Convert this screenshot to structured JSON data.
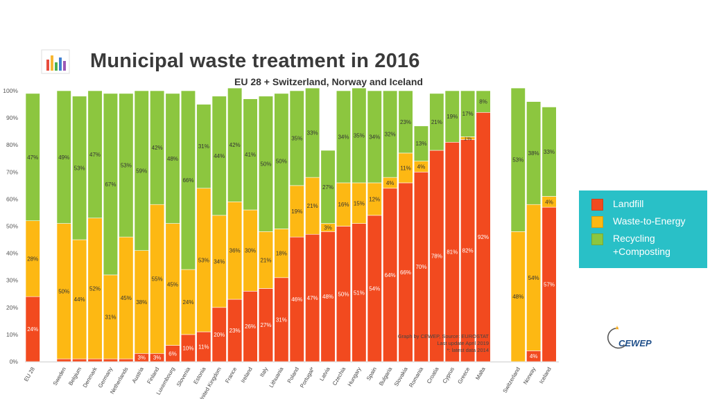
{
  "header": {
    "title": "Municipal waste treatment in 2016",
    "subtitle": "EU 28 + Switzerland, Norway and Iceland"
  },
  "legend": {
    "items": [
      {
        "label": "Landfill",
        "color": "#f24a1f"
      },
      {
        "label": "Waste-to-Energy",
        "color": "#fdb813"
      },
      {
        "label": "Recycling\n+Composting",
        "color": "#8cc63f"
      }
    ]
  },
  "note": {
    "line1": "Graph by CEWEP, Source: EUROSTAT",
    "line2": "Last update April 2019",
    "line3": "*: latest data 2014"
  },
  "brand": {
    "name": "CEWEP"
  },
  "chart_data": {
    "type": "bar",
    "stacked": true,
    "ylim": [
      0,
      100
    ],
    "yticks": [
      "0%",
      "10%",
      "20%",
      "30%",
      "40%",
      "50%",
      "60%",
      "70%",
      "80%",
      "90%",
      "100%"
    ],
    "categories": [
      "EU 28",
      "Sweden",
      "Belgium",
      "Denmark",
      "Germany",
      "Netherlands",
      "Austria",
      "Finland",
      "Luxembourg",
      "Slovenia",
      "Estonia",
      "United Kingdom",
      "France",
      "Ireland",
      "Italy",
      "Lithuania",
      "Poland",
      "Portugal*",
      "Latvia",
      "Czechia",
      "Hungary",
      "Spain",
      "Bulgaria",
      "Slovakia",
      "Romania",
      "Croatia",
      "Cyprus",
      "Greece",
      "Malta",
      "Switzerland",
      "Norway",
      "Iceland"
    ],
    "groups": [
      1,
      28,
      3
    ],
    "series": [
      {
        "name": "Landfill",
        "color": "#f24a1f",
        "values": [
          24,
          1,
          1,
          1,
          1,
          1,
          3,
          3,
          6,
          10,
          11,
          20,
          23,
          26,
          27,
          31,
          46,
          47,
          48,
          50,
          51,
          54,
          64,
          66,
          70,
          78,
          81,
          82,
          92,
          0,
          4,
          57
        ],
        "labels": [
          "24%",
          "",
          "",
          "",
          "",
          "",
          "3%",
          "3%",
          "6%",
          "10%",
          "11%",
          "20%",
          "23%",
          "26%",
          "27%",
          "31%",
          "46%",
          "47%",
          "48%",
          "50%",
          "51%",
          "54%",
          "64%",
          "66%",
          "70%",
          "78%",
          "81%",
          "82%",
          "92%",
          "",
          "4%",
          "57%"
        ]
      },
      {
        "name": "Waste-to-Energy",
        "color": "#fdb813",
        "values": [
          28,
          50,
          44,
          52,
          31,
          45,
          38,
          55,
          45,
          24,
          53,
          34,
          36,
          30,
          21,
          18,
          19,
          21,
          3,
          16,
          15,
          12,
          4,
          11,
          4,
          0,
          0,
          1,
          0,
          48,
          54,
          4
        ],
        "labels": [
          "28%",
          "50%",
          "44%",
          "52%",
          "31%",
          "45%",
          "38%",
          "55%",
          "45%",
          "24%",
          "53%",
          "34%",
          "36%",
          "30%",
          "21%",
          "18%",
          "19%",
          "21%",
          "3%",
          "16%",
          "15%",
          "12%",
          "4%",
          "11%",
          "4%",
          "",
          "",
          "1%",
          "",
          "48%",
          "54%",
          "4%"
        ]
      },
      {
        "name": "Recycling +Composting",
        "color": "#8cc63f",
        "values": [
          47,
          49,
          53,
          47,
          67,
          53,
          59,
          42,
          48,
          66,
          31,
          44,
          42,
          41,
          50,
          50,
          35,
          33,
          27,
          34,
          35,
          34,
          32,
          23,
          13,
          21,
          19,
          17,
          8,
          53,
          38,
          33
        ],
        "labels": [
          "47%",
          "49%",
          "53%",
          "47%",
          "67%",
          "53%",
          "59%",
          "42%",
          "48%",
          "66%",
          "31%",
          "44%",
          "42%",
          "41%",
          "50%",
          "50%",
          "35%",
          "33%",
          "27%",
          "34%",
          "35%",
          "34%",
          "32%",
          "23%",
          "13%",
          "21%",
          "19%",
          "17%",
          "8%",
          "53%",
          "38%",
          "33%"
        ]
      }
    ]
  }
}
